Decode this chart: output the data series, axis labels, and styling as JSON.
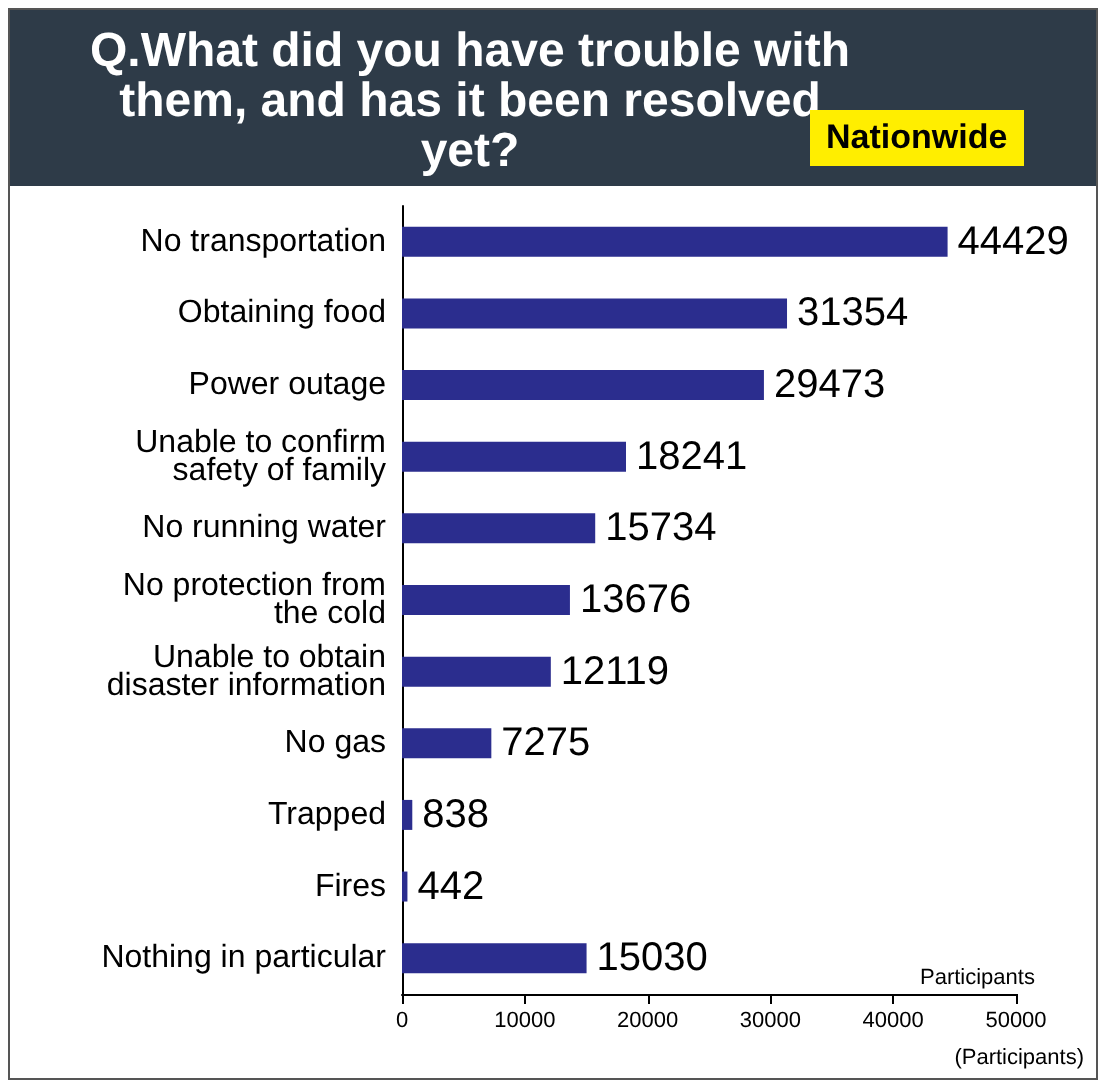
{
  "chart_data": {
    "type": "bar",
    "orientation": "horizontal",
    "title": "Q.What did you have trouble with them, and has it been resolved yet?",
    "annotations": [
      "Nationwide",
      "Participants"
    ],
    "xlabel": "(Participants)",
    "categories": [
      "No transportation",
      "Obtaining food",
      "Power outage",
      "Unable to confirm\nsafety of family",
      "No running water",
      "No protection from\nthe cold",
      "Unable to obtain\ndisaster information",
      "No gas",
      "Trapped",
      "Fires",
      "Nothing in particular"
    ],
    "values": [
      44429,
      31354,
      29473,
      18241,
      15734,
      13676,
      12119,
      7275,
      838,
      442,
      15030
    ],
    "color": "#2b2d8e",
    "xlim": [
      0,
      50000
    ],
    "xticks": [
      0,
      10000,
      20000,
      30000,
      40000,
      50000
    ],
    "data_labels": true,
    "grid": false
  }
}
